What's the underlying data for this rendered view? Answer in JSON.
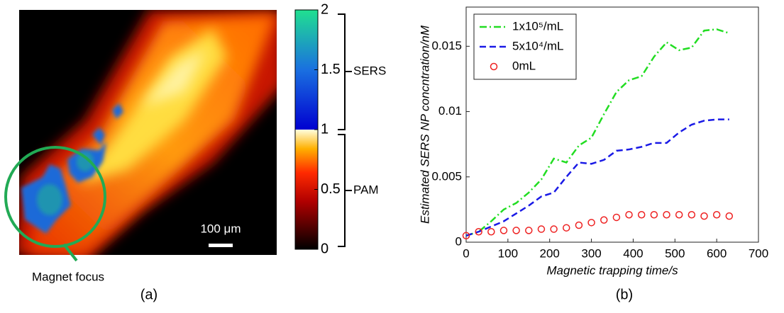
{
  "panel_a": {
    "colorbar": {
      "lim": [
        0,
        2
      ],
      "ticks": [
        0,
        0.5,
        1,
        1.5,
        2
      ]
    },
    "sers_label": "SERS",
    "pam_label": "PAM",
    "scale_bar": "100 μm",
    "annotation": "Magnet focus",
    "caption": "(a)"
  },
  "chart_data": {
    "type": "line",
    "xlabel": "Magnetic trapping time/s",
    "ylabel": "Estimated SERS NP concntration/nM",
    "caption": "(b)",
    "x": [
      0,
      30,
      60,
      90,
      120,
      150,
      180,
      210,
      240,
      270,
      300,
      330,
      360,
      390,
      420,
      450,
      480,
      510,
      540,
      570,
      600,
      630
    ],
    "series": [
      {
        "name": "1x10⁵/mL",
        "color": "#22dd22",
        "linestyle": "-.",
        "values": [
          0.0005,
          0.0008,
          0.0016,
          0.0025,
          0.003,
          0.0038,
          0.0048,
          0.0064,
          0.0061,
          0.0074,
          0.008,
          0.0098,
          0.0115,
          0.0124,
          0.0127,
          0.0142,
          0.0153,
          0.0147,
          0.0149,
          0.0162,
          0.0163,
          0.016
        ]
      },
      {
        "name": "5x10⁴/mL",
        "color": "#1a1ae6",
        "linestyle": "--",
        "values": [
          0.0005,
          0.0008,
          0.0012,
          0.0016,
          0.0022,
          0.0028,
          0.0035,
          0.0038,
          0.005,
          0.0061,
          0.006,
          0.0063,
          0.007,
          0.0071,
          0.0073,
          0.0076,
          0.0076,
          0.0084,
          0.009,
          0.0093,
          0.0094,
          0.0094
        ]
      },
      {
        "name": "0mL",
        "color": "#ee2222",
        "marker": "o",
        "values": [
          0.0005,
          0.0008,
          0.0008,
          0.0009,
          0.0009,
          0.0009,
          0.001,
          0.001,
          0.0011,
          0.0013,
          0.0015,
          0.0017,
          0.0019,
          0.0021,
          0.0021,
          0.0021,
          0.0021,
          0.0021,
          0.0021,
          0.002,
          0.0021,
          0.002
        ]
      }
    ],
    "xlim": [
      0,
      700
    ],
    "xticks": [
      0,
      100,
      200,
      300,
      400,
      500,
      600,
      700
    ],
    "ylim": [
      0,
      0.018
    ],
    "yticks": [
      0,
      0.005,
      0.01,
      0.015
    ],
    "legend": "upper left"
  }
}
